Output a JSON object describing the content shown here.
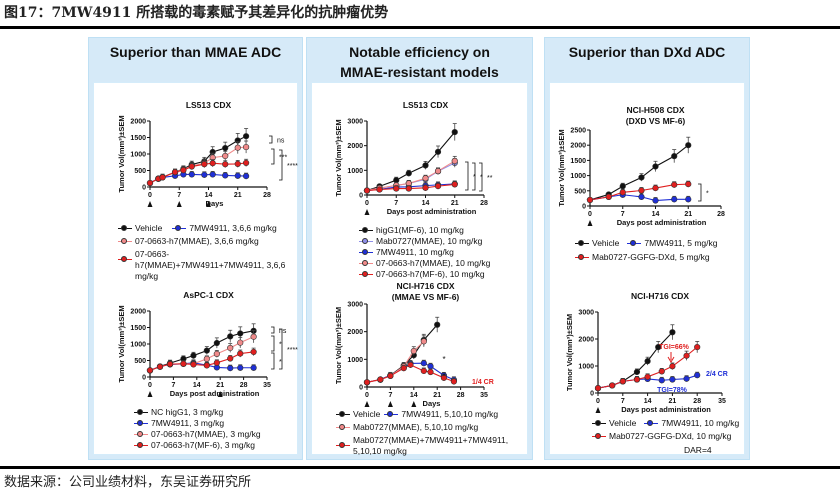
{
  "figure": {
    "title": "图17：7MW4911 所搭载的毒素赋予其差异化的抗肿瘤优势",
    "source": "数据来源：公司业绩材料，东吴证券研究所"
  },
  "panels": [
    {
      "header": "Superior than MMAE ADC"
    },
    {
      "header": "Notable efficiency on MMAE-resistant models"
    },
    {
      "header": "Superior than DXd ADC"
    }
  ],
  "colors": {
    "black": "#111111",
    "blue": "#1f2fd6",
    "pink": "#f08a8a",
    "red": "#e01f1f",
    "lightblue": "#8f8fe8",
    "panel_bg": "#d6eaf8"
  },
  "chart_data": [
    {
      "id": "c1",
      "type": "line",
      "title": "LS513 CDX",
      "title2": "",
      "xlabel": "Days",
      "ylabel": "Tumor Vol(mm³)±SEM",
      "xlim": [
        0,
        28
      ],
      "xticks": [
        0,
        7,
        14,
        21,
        28
      ],
      "ylim": [
        0,
        2000
      ],
      "yticks": [
        0,
        500,
        1000,
        1500,
        2000
      ],
      "dosing_days": [
        0,
        7,
        14
      ],
      "series": [
        {
          "name": "Vehicle",
          "color": "black",
          "x": [
            0,
            2,
            3,
            6,
            8,
            10,
            13,
            15,
            18,
            21,
            23
          ],
          "y": [
            120,
            250,
            300,
            450,
            550,
            680,
            780,
            1060,
            1180,
            1410,
            1540
          ]
        },
        {
          "name": "7MW4911, 3,6,6 mg/kg",
          "color": "blue",
          "x": [
            0,
            2,
            3,
            6,
            8,
            10,
            13,
            15,
            18,
            21,
            23
          ],
          "y": [
            120,
            260,
            290,
            340,
            380,
            380,
            370,
            380,
            350,
            340,
            330
          ]
        },
        {
          "name": "07-0663-h7(MMAE), 3,6,6 mg/kg",
          "color": "pink",
          "x": [
            0,
            2,
            3,
            6,
            8,
            10,
            13,
            15,
            18,
            21,
            23
          ],
          "y": [
            120,
            250,
            290,
            450,
            530,
            640,
            720,
            890,
            940,
            1190,
            1210
          ]
        },
        {
          "name": "07-0663-h7(MMAE)+7MW4911+7MW4911, 3,6,6 mg/kg",
          "color": "red",
          "x": [
            0,
            2,
            3,
            6,
            8,
            10,
            13,
            15,
            18,
            21,
            23
          ],
          "y": [
            120,
            250,
            290,
            450,
            510,
            620,
            690,
            720,
            690,
            700,
            730
          ]
        }
      ],
      "annotations": [
        "ns",
        "***",
        "****"
      ]
    },
    {
      "id": "c2",
      "type": "line",
      "title": "AsPC-1 CDX",
      "title2": "",
      "xlabel": "Days post administration",
      "ylabel": "Tumor Vol(mm³)±SEM",
      "xlim": [
        0,
        35
      ],
      "xticks": [
        0,
        7,
        14,
        21,
        28,
        35
      ],
      "ylim": [
        0,
        2000
      ],
      "yticks": [
        0,
        500,
        1000,
        1500,
        2000
      ],
      "dosing_days": [
        0,
        21
      ],
      "series": [
        {
          "name": "NC higG1, 3 mg/kg",
          "color": "black",
          "x": [
            0,
            3,
            6,
            10,
            13,
            17,
            20,
            24,
            27,
            31
          ],
          "y": [
            200,
            320,
            420,
            550,
            650,
            800,
            1030,
            1230,
            1320,
            1400
          ]
        },
        {
          "name": "7MW4911, 3 mg/kg",
          "color": "blue",
          "x": [
            0,
            3,
            6,
            10,
            13,
            17,
            20,
            24,
            27,
            31
          ],
          "y": [
            200,
            320,
            380,
            400,
            430,
            360,
            290,
            270,
            280,
            280
          ]
        },
        {
          "name": "07-0663-h7(MMAE), 3 mg/kg",
          "color": "pink",
          "x": [
            0,
            3,
            6,
            10,
            13,
            17,
            20,
            24,
            27,
            31
          ],
          "y": [
            200,
            310,
            390,
            400,
            400,
            550,
            700,
            880,
            1040,
            1220
          ]
        },
        {
          "name": "07-0663-h7(MF-6), 3 mg/kg",
          "color": "red",
          "x": [
            0,
            3,
            6,
            10,
            13,
            17,
            20,
            24,
            27,
            31
          ],
          "y": [
            200,
            310,
            390,
            400,
            380,
            350,
            430,
            560,
            710,
            760
          ]
        }
      ],
      "annotations": [
        "ns",
        "*",
        "*",
        "****"
      ]
    },
    {
      "id": "c3",
      "type": "line",
      "title": "LS513 CDX",
      "title2": "",
      "xlabel": "Days post administration",
      "ylabel": "Tumor Vol(mm³)±SEM",
      "xlim": [
        0,
        28
      ],
      "xticks": [
        0,
        7,
        14,
        21,
        28
      ],
      "ylim": [
        0,
        3000
      ],
      "yticks": [
        0,
        1000,
        2000,
        3000
      ],
      "dosing_days": [
        0
      ],
      "series": [
        {
          "name": "higG1(MF-6), 10 mg/kg",
          "color": "black",
          "x": [
            0,
            3,
            7,
            10,
            14,
            17,
            21
          ],
          "y": [
            180,
            350,
            600,
            880,
            1200,
            1750,
            2550
          ]
        },
        {
          "name": "Mab0727(MMAE), 10 mg/kg",
          "color": "lightblue",
          "x": [
            0,
            3,
            7,
            10,
            14,
            17,
            21
          ],
          "y": [
            180,
            280,
            380,
            470,
            640,
            960,
            1300
          ]
        },
        {
          "name": "7MW4911, 10 mg/kg",
          "color": "blue",
          "x": [
            0,
            3,
            7,
            10,
            14,
            17,
            21
          ],
          "y": [
            180,
            230,
            320,
            330,
            380,
            410,
            450
          ]
        },
        {
          "name": "07-0663-h7(MMAE), 10 mg/kg",
          "color": "pink",
          "x": [
            0,
            3,
            7,
            10,
            14,
            17,
            21
          ],
          "y": [
            180,
            280,
            390,
            470,
            680,
            970,
            1380
          ]
        },
        {
          "name": "07-0663-h7(MF-6), 10 mg/kg",
          "color": "red",
          "x": [
            0,
            3,
            7,
            10,
            14,
            17,
            21
          ],
          "y": [
            180,
            220,
            260,
            260,
            290,
            360,
            430
          ]
        }
      ],
      "annotations": [
        "*",
        "*",
        "**"
      ]
    },
    {
      "id": "c4",
      "type": "line",
      "title": "NCI-H716 CDX",
      "title2": "(MMAE VS MF-6)",
      "xlabel": "Days",
      "ylabel": "Tumor Vol(mm³)±SEM",
      "xlim": [
        0,
        35
      ],
      "xticks": [
        0,
        7,
        14,
        21,
        28,
        35
      ],
      "ylim": [
        0,
        3000
      ],
      "yticks": [
        0,
        1000,
        2000,
        3000
      ],
      "dosing_days": [
        0,
        7,
        14
      ],
      "series": [
        {
          "name": "Vehicle",
          "color": "black",
          "x": [
            0,
            4,
            7,
            11,
            14,
            17,
            21
          ],
          "y": [
            170,
            270,
            420,
            780,
            1150,
            1700,
            2250
          ]
        },
        {
          "name": "7MW4911, 5,10,10 mg/kg",
          "color": "blue",
          "x": [
            0,
            4,
            7,
            11,
            13,
            17,
            19,
            23,
            26
          ],
          "y": [
            170,
            270,
            420,
            700,
            850,
            860,
            750,
            420,
            260
          ]
        },
        {
          "name": "Mab0727(MMAE), 5,10,10 mg/kg",
          "color": "pink",
          "x": [
            0,
            4,
            7,
            11,
            14,
            17
          ],
          "y": [
            170,
            260,
            400,
            750,
            1300,
            1650
          ]
        },
        {
          "name": "Mab0727(MMAE)+7MW4911+7MW4911, 5,10,10 mg/kg",
          "color": "red",
          "x": [
            0,
            4,
            7,
            11,
            13,
            17,
            19,
            23,
            26
          ],
          "y": [
            170,
            270,
            400,
            680,
            800,
            580,
            540,
            330,
            200
          ]
        }
      ],
      "annotations": [
        "*",
        "*",
        "1/4 CR"
      ]
    },
    {
      "id": "c5",
      "type": "line",
      "title": "NCI-H508 CDX",
      "title2": "(DXD VS MF-6)",
      "xlabel": "Days post administration",
      "ylabel": "Tumor Vol(mm³)±SEM",
      "xlim": [
        0,
        28
      ],
      "xticks": [
        0,
        7,
        14,
        21,
        28
      ],
      "ylim": [
        0,
        2500
      ],
      "yticks": [
        0,
        500,
        1000,
        1500,
        2000,
        2500
      ],
      "dosing_days": [
        0
      ],
      "series": [
        {
          "name": "Vehicle",
          "color": "black",
          "x": [
            0,
            4,
            7,
            11,
            14,
            18,
            21
          ],
          "y": [
            200,
            380,
            650,
            940,
            1300,
            1640,
            2000
          ]
        },
        {
          "name": "7MW4911, 5 mg/kg",
          "color": "blue",
          "x": [
            0,
            4,
            7,
            11,
            14,
            18,
            21
          ],
          "y": [
            200,
            300,
            370,
            300,
            180,
            220,
            220
          ]
        },
        {
          "name": "Mab0727-GGFG-DXd, 5 mg/kg",
          "color": "red",
          "x": [
            0,
            4,
            7,
            11,
            14,
            18,
            21
          ],
          "y": [
            200,
            300,
            450,
            510,
            590,
            700,
            720
          ]
        }
      ],
      "annotations": [
        "*"
      ]
    },
    {
      "id": "c6",
      "type": "line",
      "title": "NCI-H716 CDX",
      "title2": "",
      "xlabel": "Days post administration",
      "ylabel": "Tumor Vol(mm³)±SEM",
      "xlim": [
        0,
        35
      ],
      "xticks": [
        0,
        7,
        14,
        21,
        28,
        35
      ],
      "ylim": [
        0,
        3000
      ],
      "yticks": [
        0,
        1000,
        2000,
        3000
      ],
      "dosing_days": [
        0
      ],
      "series": [
        {
          "name": "Vehicle",
          "color": "black",
          "x": [
            0,
            4,
            7,
            11,
            14,
            17,
            21
          ],
          "y": [
            180,
            280,
            430,
            780,
            1180,
            1700,
            2250
          ]
        },
        {
          "name": "7MW4911, 10 mg/kg",
          "color": "blue",
          "x": [
            0,
            4,
            7,
            11,
            14,
            18,
            21,
            25,
            28
          ],
          "y": [
            180,
            280,
            430,
            500,
            520,
            470,
            500,
            530,
            660
          ]
        },
        {
          "name": "Mab0727-GGFG-DXd, 10 mg/kg",
          "color": "red",
          "x": [
            0,
            4,
            7,
            11,
            14,
            18,
            21,
            25,
            28
          ],
          "y": [
            180,
            280,
            430,
            500,
            600,
            800,
            990,
            1380,
            1700
          ]
        }
      ],
      "annotations": [
        "TGI=66%",
        "TGI=78%",
        "2/4 CR",
        "DAR=4"
      ]
    }
  ]
}
